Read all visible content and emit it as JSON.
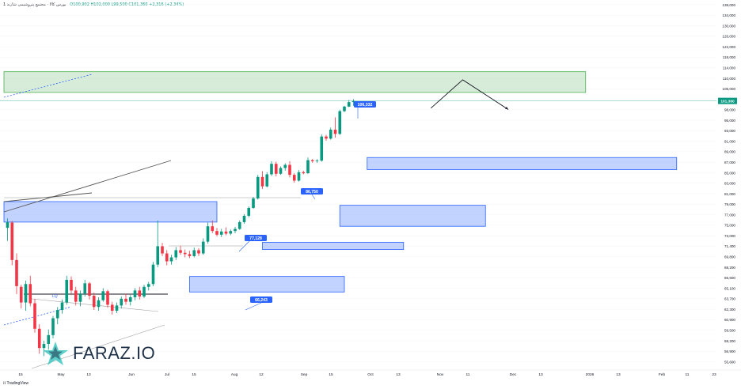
{
  "header": {
    "title": "1 بورس کالا · مجتمع پتروشیمی شازند",
    "ohlc": "O100,902  H102,000  L99,500  C101,360  +2,316 (+2.34%)"
  },
  "brand": {
    "name": "FARAZ.IO",
    "platform": "TradingView"
  },
  "colors": {
    "up": "#089981",
    "down": "#f23645",
    "zone_blue": "#2962ff",
    "zone_green": "#4caf50",
    "last_price": "#089981",
    "callout": "#2962ff"
  },
  "chart_data": {
    "type": "candlestick",
    "y_axis": {
      "ticks": [
        "138,000",
        "134,000",
        "130,000",
        "126,000",
        "122,000",
        "118,000",
        "114,000",
        "110,000",
        "106,000",
        "102,000",
        "98,000",
        "95,000",
        "93,000",
        "91,000",
        "89,000",
        "87,000",
        "85,000",
        "83,000",
        "81,000",
        "79,000",
        "77,000",
        "75,000",
        "73,000",
        "71,400",
        "69,800",
        "68,200",
        "66,600",
        "65,100",
        "63,700",
        "62,300",
        "60,900",
        "59,500",
        "58,200",
        "56,900",
        "55,600"
      ],
      "last_price": "101,360"
    },
    "x_axis": {
      "ticks": [
        "15",
        "May",
        "13",
        "Jun",
        "Jul",
        "15",
        "Aug",
        "12",
        "Sep",
        "15",
        "Oct",
        "13",
        "Nov",
        "11",
        "Dec",
        "13",
        "2026",
        "13",
        "Feb",
        "11",
        "23"
      ]
    },
    "callouts": [
      {
        "label": "106,332",
        "value": 106332
      },
      {
        "label": "86,750",
        "value": 86750
      },
      {
        "label": "77,128",
        "value": 77128
      },
      {
        "label": "66,243",
        "value": 66243
      }
    ],
    "line_label": "LQ",
    "candles": [
      {
        "o": 74500,
        "h": 76300,
        "l": 72200,
        "c": 75600
      },
      {
        "o": 75500,
        "h": 75800,
        "l": 68500,
        "c": 69300
      },
      {
        "o": 69300,
        "h": 70300,
        "l": 64300,
        "c": 65400
      },
      {
        "o": 65300,
        "h": 65600,
        "l": 62400,
        "c": 63200
      },
      {
        "o": 63200,
        "h": 66200,
        "l": 62100,
        "c": 65700
      },
      {
        "o": 65700,
        "h": 66900,
        "l": 62700,
        "c": 63100
      },
      {
        "o": 63100,
        "h": 63700,
        "l": 59200,
        "c": 59700
      },
      {
        "o": 59700,
        "h": 60300,
        "l": 56600,
        "c": 57300
      },
      {
        "o": 57300,
        "h": 58200,
        "l": 56300,
        "c": 57800
      },
      {
        "o": 57800,
        "h": 59600,
        "l": 57100,
        "c": 58900
      },
      {
        "o": 58900,
        "h": 61400,
        "l": 58500,
        "c": 61100
      },
      {
        "o": 61100,
        "h": 62600,
        "l": 60300,
        "c": 62200
      },
      {
        "o": 62200,
        "h": 63600,
        "l": 61700,
        "c": 63200
      },
      {
        "o": 63200,
        "h": 66900,
        "l": 62900,
        "c": 66300
      },
      {
        "o": 66300,
        "h": 66800,
        "l": 64200,
        "c": 64800
      },
      {
        "o": 64800,
        "h": 65300,
        "l": 62800,
        "c": 63300
      },
      {
        "o": 63300,
        "h": 64800,
        "l": 62700,
        "c": 64400
      },
      {
        "o": 64400,
        "h": 66300,
        "l": 64000,
        "c": 65800
      },
      {
        "o": 65800,
        "h": 66000,
        "l": 63600,
        "c": 64100
      },
      {
        "o": 64100,
        "h": 64500,
        "l": 62200,
        "c": 62600
      },
      {
        "o": 62600,
        "h": 63900,
        "l": 62100,
        "c": 63500
      },
      {
        "o": 63500,
        "h": 65100,
        "l": 63300,
        "c": 64700
      },
      {
        "o": 64700,
        "h": 64900,
        "l": 62500,
        "c": 62900
      },
      {
        "o": 62900,
        "h": 63300,
        "l": 61600,
        "c": 62100
      },
      {
        "o": 62100,
        "h": 63200,
        "l": 61800,
        "c": 62800
      },
      {
        "o": 62800,
        "h": 64000,
        "l": 62400,
        "c": 63700
      },
      {
        "o": 63700,
        "h": 64400,
        "l": 62900,
        "c": 63300
      },
      {
        "o": 63300,
        "h": 64200,
        "l": 62800,
        "c": 63900
      },
      {
        "o": 63900,
        "h": 65100,
        "l": 63500,
        "c": 64800
      },
      {
        "o": 64800,
        "h": 65300,
        "l": 63600,
        "c": 64000
      },
      {
        "o": 64000,
        "h": 65600,
        "l": 63800,
        "c": 65300
      },
      {
        "o": 65300,
        "h": 66000,
        "l": 64800,
        "c": 65700
      },
      {
        "o": 65700,
        "h": 69000,
        "l": 65400,
        "c": 68600
      },
      {
        "o": 68600,
        "h": 75900,
        "l": 68200,
        "c": 71400
      },
      {
        "o": 71400,
        "h": 71900,
        "l": 69900,
        "c": 70300
      },
      {
        "o": 70300,
        "h": 70800,
        "l": 68500,
        "c": 69100
      },
      {
        "o": 69100,
        "h": 70100,
        "l": 68600,
        "c": 69700
      },
      {
        "o": 69700,
        "h": 71300,
        "l": 69300,
        "c": 70800
      },
      {
        "o": 70800,
        "h": 71500,
        "l": 70100,
        "c": 70400
      },
      {
        "o": 70400,
        "h": 70900,
        "l": 69700,
        "c": 70200
      },
      {
        "o": 70200,
        "h": 70700,
        "l": 69600,
        "c": 69900
      },
      {
        "o": 69900,
        "h": 71200,
        "l": 69700,
        "c": 70800
      },
      {
        "o": 70800,
        "h": 71100,
        "l": 69900,
        "c": 70300
      },
      {
        "o": 70300,
        "h": 72600,
        "l": 70100,
        "c": 72100
      },
      {
        "o": 72100,
        "h": 75500,
        "l": 71800,
        "c": 74800
      },
      {
        "o": 74800,
        "h": 75900,
        "l": 73500,
        "c": 73900
      },
      {
        "o": 73900,
        "h": 74500,
        "l": 72900,
        "c": 73200
      },
      {
        "o": 73200,
        "h": 74300,
        "l": 72800,
        "c": 73800
      },
      {
        "o": 73800,
        "h": 74600,
        "l": 73100,
        "c": 73400
      },
      {
        "o": 73400,
        "h": 74200,
        "l": 73100,
        "c": 73900
      },
      {
        "o": 73900,
        "h": 74700,
        "l": 73500,
        "c": 74300
      },
      {
        "o": 74300,
        "h": 75900,
        "l": 74100,
        "c": 75600
      },
      {
        "o": 75600,
        "h": 77100,
        "l": 75300,
        "c": 76800
      },
      {
        "o": 76800,
        "h": 78600,
        "l": 76500,
        "c": 78300
      },
      {
        "o": 78300,
        "h": 80400,
        "l": 78100,
        "c": 80100
      },
      {
        "o": 80100,
        "h": 84600,
        "l": 79900,
        "c": 84200
      },
      {
        "o": 84200,
        "h": 85300,
        "l": 81900,
        "c": 82400
      },
      {
        "o": 82400,
        "h": 85100,
        "l": 82200,
        "c": 84700
      },
      {
        "o": 84700,
        "h": 87200,
        "l": 84400,
        "c": 86700
      },
      {
        "o": 86700,
        "h": 87100,
        "l": 84300,
        "c": 84800
      },
      {
        "o": 84800,
        "h": 86200,
        "l": 84600,
        "c": 85900
      },
      {
        "o": 85900,
        "h": 86800,
        "l": 85400,
        "c": 86500
      },
      {
        "o": 86500,
        "h": 87200,
        "l": 84100,
        "c": 84600
      },
      {
        "o": 84600,
        "h": 84900,
        "l": 83100,
        "c": 83500
      },
      {
        "o": 83500,
        "h": 85500,
        "l": 83300,
        "c": 85100
      },
      {
        "o": 85100,
        "h": 85400,
        "l": 84700,
        "c": 84900
      },
      {
        "o": 84900,
        "h": 87900,
        "l": 84800,
        "c": 87400
      },
      {
        "o": 87400,
        "h": 87600,
        "l": 86900,
        "c": 87200
      },
      {
        "o": 87200,
        "h": 87600,
        "l": 86900,
        "c": 87300
      },
      {
        "o": 87300,
        "h": 92300,
        "l": 87100,
        "c": 91900
      },
      {
        "o": 91900,
        "h": 92200,
        "l": 91100,
        "c": 91500
      },
      {
        "o": 91500,
        "h": 93600,
        "l": 91300,
        "c": 93200
      },
      {
        "o": 93200,
        "h": 95800,
        "l": 91700,
        "c": 92400
      },
      {
        "o": 92400,
        "h": 98000,
        "l": 92200,
        "c": 97600
      },
      {
        "o": 97600,
        "h": 99500,
        "l": 97300,
        "c": 99200
      },
      {
        "o": 99200,
        "h": 101700,
        "l": 99000,
        "c": 100900
      },
      {
        "o": 100900,
        "h": 102000,
        "l": 99500,
        "c": 101360
      }
    ],
    "zones": [
      {
        "type": "supply",
        "color": "green",
        "top": 112500,
        "bottom": 104600,
        "from": 0,
        "to": 127
      },
      {
        "type": "demand",
        "color": "blue",
        "top": 87900,
        "bottom": 85600,
        "from": 79,
        "to": 147
      },
      {
        "type": "demand",
        "color": "blue",
        "top": 79500,
        "bottom": 75600,
        "from": 0,
        "to": 46
      },
      {
        "type": "demand",
        "color": "blue",
        "top": 78800,
        "bottom": 74800,
        "from": 73,
        "to": 105
      },
      {
        "type": "demand",
        "color": "blue",
        "top": 72000,
        "bottom": 70900,
        "from": 56,
        "to": 87
      },
      {
        "type": "demand",
        "color": "blue",
        "top": 66800,
        "bottom": 64600,
        "from": 40,
        "to": 74
      }
    ],
    "projection": [
      {
        "idx": 93,
        "value": 98600
      },
      {
        "idx": 100,
        "value": 109400
      },
      {
        "idx": 110,
        "value": 98100
      }
    ]
  }
}
